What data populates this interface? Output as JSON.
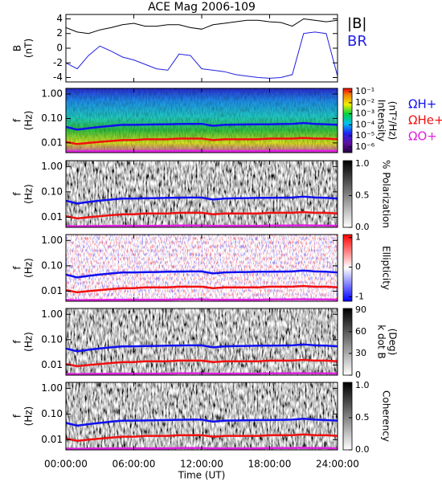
{
  "chart_data": [
    {
      "type": "line",
      "title": "ACE Mag 2006-109",
      "ylabel": "B",
      "ylabel_unit": "(nT)",
      "x": [
        0,
        1,
        2,
        3,
        4,
        5,
        6,
        7,
        8,
        9,
        10,
        11,
        12,
        13,
        14,
        15,
        16,
        17,
        18,
        19,
        20,
        21,
        22,
        23,
        24
      ],
      "series": [
        {
          "name": "|B|",
          "color": "#000000",
          "values": [
            2.8,
            2.2,
            2.0,
            2.5,
            2.8,
            3.2,
            3.4,
            3.0,
            3.0,
            3.2,
            3.2,
            2.8,
            2.6,
            3.2,
            3.4,
            3.6,
            3.8,
            3.8,
            3.6,
            3.5,
            3.0,
            4.0,
            3.8,
            3.6,
            3.8
          ]
        },
        {
          "name": "BR",
          "color": "#2020e0",
          "values": [
            -2.0,
            -2.8,
            -1.0,
            0.3,
            -0.4,
            -1.2,
            -1.6,
            -2.2,
            -2.8,
            -3.0,
            -0.8,
            -1.0,
            -2.8,
            -3.0,
            -3.2,
            -3.6,
            -3.8,
            -4.0,
            -4.1,
            -4.0,
            -3.6,
            2.0,
            2.2,
            2.0,
            -3.8
          ]
        }
      ],
      "ylim": [
        -4.6,
        4.6
      ],
      "yticks": [
        -4,
        -2,
        0,
        2,
        4
      ]
    },
    {
      "type": "spectrogram",
      "colormap": "rainbow",
      "ylabel": "f",
      "ylabel_unit": "(Hz)",
      "log": true,
      "ylim": [
        0.004,
        1.7
      ],
      "yticks": [
        {
          "value": 1,
          "label": "1.00"
        },
        {
          "value": 0.1,
          "label": "0.10"
        },
        0.01
      ],
      "x": [
        0,
        1,
        2,
        3,
        4,
        5,
        6,
        7,
        8,
        9,
        10,
        11,
        12,
        13,
        14,
        15,
        16,
        17,
        18,
        19,
        20,
        21,
        22,
        23,
        24
      ],
      "series": [
        {
          "name": "ΩH+",
          "color": "#1010f0",
          "values": [
            0.045,
            0.035,
            0.04,
            0.045,
            0.05,
            0.055,
            0.055,
            0.056,
            0.057,
            0.058,
            0.059,
            0.06,
            0.06,
            0.05,
            0.055,
            0.056,
            0.057,
            0.058,
            0.058,
            0.059,
            0.06,
            0.065,
            0.06,
            0.058,
            0.055
          ]
        },
        {
          "name": "ΩHe+",
          "color": "#f01010",
          "values": [
            0.011,
            0.009,
            0.01,
            0.011,
            0.012,
            0.013,
            0.013,
            0.014,
            0.014,
            0.014,
            0.015,
            0.015,
            0.015,
            0.013,
            0.014,
            0.014,
            0.014,
            0.014,
            0.015,
            0.015,
            0.015,
            0.016,
            0.015,
            0.015,
            0.014
          ]
        },
        {
          "name": "ΩO+",
          "color": "#e020e0",
          "values": [
            0.0045,
            0.0044,
            0.0045,
            0.0045,
            0.0046,
            0.0046,
            0.0046,
            0.0046,
            0.0046,
            0.0046,
            0.0047,
            0.0047,
            0.0047,
            0.0046,
            0.0046,
            0.0046,
            0.0046,
            0.0046,
            0.0047,
            0.0047,
            0.0047,
            0.0048,
            0.0047,
            0.0047,
            0.0046
          ]
        }
      ],
      "colorbar": {
        "label": "Intensity",
        "unit": "(nT²/Hz)",
        "log": true,
        "lim": [
          3e-07,
          0.2
        ],
        "ticks": [
          {
            "value": 0.1,
            "label": "10⁻¹"
          },
          {
            "value": 0.01,
            "label": "10⁻²"
          },
          {
            "value": 0.001,
            "label": "10⁻³"
          },
          {
            "value": 0.0001,
            "label": "10⁻⁴"
          },
          {
            "value": 1e-05,
            "label": "10⁻⁵"
          },
          {
            "value": 1e-06,
            "label": "10⁻⁶"
          }
        ]
      }
    },
    {
      "type": "spectrogram",
      "colormap": "gray",
      "ylabel": "f",
      "ylabel_unit": "(Hz)",
      "log": true,
      "ylim": [
        0.004,
        1.7
      ],
      "yticks": [
        {
          "value": 1,
          "label": "1.00"
        },
        {
          "value": 0.1,
          "label": "0.10"
        },
        0.01
      ],
      "colorbar": {
        "label": "% Polarization",
        "lim": [
          0,
          1.05
        ],
        "ticks": [
          {
            "value": 0,
            "label": "0.0"
          },
          0.5,
          {
            "value": 1,
            "label": "1.0"
          }
        ]
      }
    },
    {
      "type": "spectrogram",
      "colormap": "redblue",
      "ylabel": "f",
      "ylabel_unit": "(Hz)",
      "log": true,
      "ylim": [
        0.004,
        1.7
      ],
      "yticks": [
        {
          "value": 1,
          "label": "1.00"
        },
        {
          "value": 0.1,
          "label": "0.10"
        },
        0.01
      ],
      "colorbar": {
        "label": "Ellipticity",
        "lim": [
          -1.15,
          1.1
        ],
        "ticks": [
          -1,
          0,
          1
        ]
      }
    },
    {
      "type": "spectrogram",
      "colormap": "gray",
      "ylabel": "f",
      "ylabel_unit": "(Hz)",
      "log": true,
      "ylim": [
        0.004,
        1.7
      ],
      "yticks": [
        {
          "value": 1,
          "label": "1.00"
        },
        {
          "value": 0.1,
          "label": "0.10"
        },
        0.01
      ],
      "colorbar": {
        "label": "k dot B",
        "unit": "(Deg)",
        "lim": [
          0,
          92
        ],
        "ticks": [
          0,
          30,
          60,
          90
        ]
      }
    },
    {
      "type": "spectrogram",
      "colormap": "gray",
      "ylabel": "f",
      "ylabel_unit": "(Hz)",
      "log": true,
      "ylim": [
        0.004,
        1.7
      ],
      "yticks": [
        {
          "value": 1,
          "label": "1.00"
        },
        {
          "value": 0.1,
          "label": "0.10"
        },
        0.01
      ],
      "colorbar": {
        "label": "Coherency",
        "lim": [
          0,
          1.05
        ],
        "ticks": [
          {
            "value": 0,
            "label": "0.0"
          },
          0.5,
          {
            "value": 1,
            "label": "1.0"
          }
        ]
      },
      "xlabel": "Time (UT)",
      "xlim": [
        0,
        24
      ],
      "xticks": [
        {
          "value": 0,
          "label": "00:00:00"
        },
        {
          "value": 6,
          "label": "06:00:00"
        },
        {
          "value": 12,
          "label": "12:00:00"
        },
        {
          "value": 18,
          "label": "18:00:00"
        },
        {
          "value": 24,
          "label": "24:00:00"
        }
      ]
    }
  ]
}
